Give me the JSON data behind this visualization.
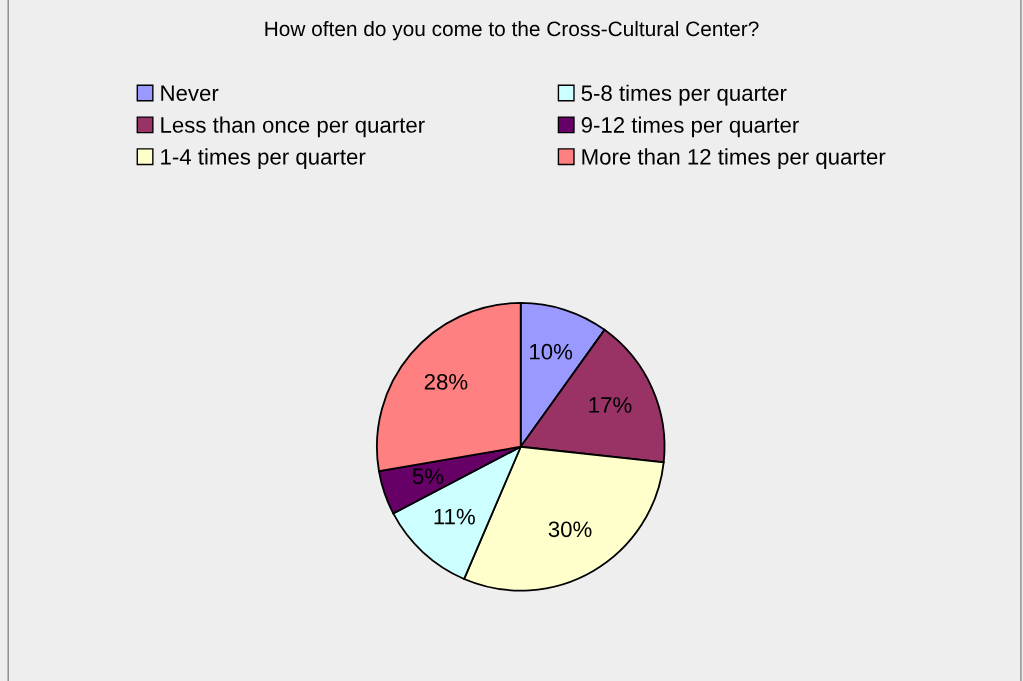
{
  "chart_data": {
    "type": "pie",
    "title": "How often do you come to the Cross-Cultural Center?",
    "categories": [
      "Never",
      "Less than once per quarter",
      "1-4 times per quarter",
      "5-8 times per quarter",
      "9-12 times per quarter",
      "More than 12 times per quarter"
    ],
    "values": [
      10,
      17,
      30,
      11,
      5,
      28
    ],
    "value_labels": [
      "10%",
      "17%",
      "30%",
      "11%",
      "5%",
      "28%"
    ],
    "colors": [
      "#9999ff",
      "#993366",
      "#ffffcc",
      "#ccffff",
      "#660066",
      "#ff8080"
    ],
    "legend": "top"
  }
}
